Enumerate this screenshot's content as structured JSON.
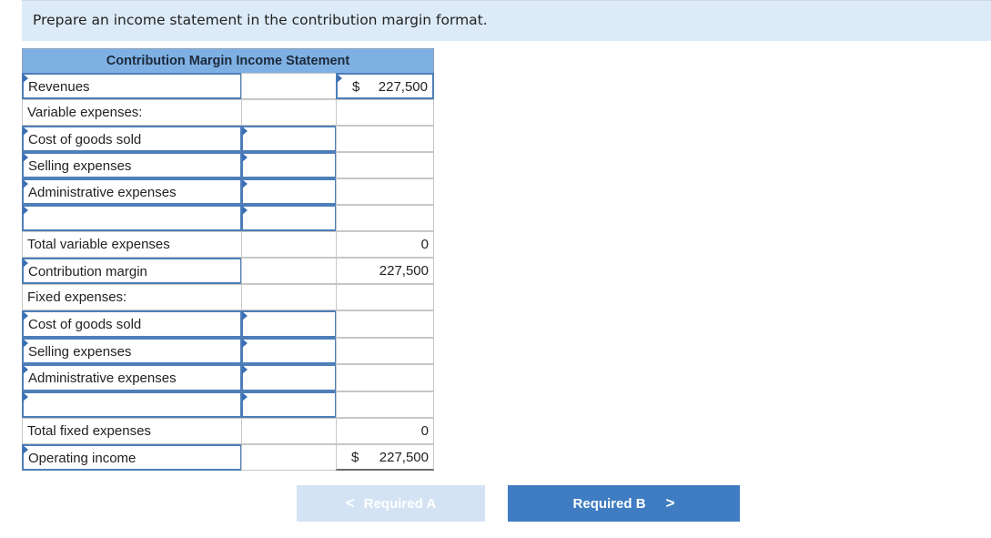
{
  "instruction": "Prepare an income statement in the contribution margin format.",
  "statement": {
    "title": "Contribution Margin Income Statement",
    "rows": [
      {
        "label": "Revenues",
        "dollar": "$",
        "amount": "227,500"
      },
      {
        "label": "Variable expenses:",
        "dollar": "",
        "amount": ""
      },
      {
        "label": "Cost of goods sold",
        "dollar": "",
        "amount": ""
      },
      {
        "label": "Selling expenses",
        "dollar": "",
        "amount": ""
      },
      {
        "label": "Administrative expenses",
        "dollar": "",
        "amount": ""
      },
      {
        "label": "",
        "dollar": "",
        "amount": ""
      },
      {
        "label": "Total variable expenses",
        "dollar": "",
        "amount": "0"
      },
      {
        "label": "Contribution margin",
        "dollar": "",
        "amount": "227,500"
      },
      {
        "label": "Fixed expenses:",
        "dollar": "",
        "amount": ""
      },
      {
        "label": "Cost of goods sold",
        "dollar": "",
        "amount": ""
      },
      {
        "label": "Selling expenses",
        "dollar": "",
        "amount": ""
      },
      {
        "label": "Administrative expenses",
        "dollar": "",
        "amount": ""
      },
      {
        "label": "",
        "dollar": "",
        "amount": ""
      },
      {
        "label": "Total fixed expenses",
        "dollar": "",
        "amount": "0"
      },
      {
        "label": "Operating income",
        "dollar": "$",
        "amount": "227,500"
      }
    ]
  },
  "nav": {
    "prev_label": "Required A",
    "next_label": "Required B",
    "prev_chevron": "<",
    "next_chevron": ">"
  }
}
